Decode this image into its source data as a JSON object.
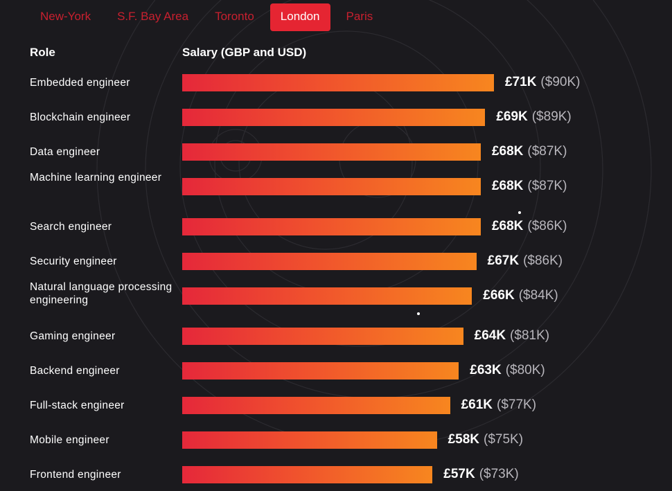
{
  "tabs": [
    {
      "label": "New-York",
      "active": false
    },
    {
      "label": "S.F. Bay Area",
      "active": false
    },
    {
      "label": "Toronto",
      "active": false
    },
    {
      "label": "London",
      "active": true
    },
    {
      "label": "Paris",
      "active": false
    }
  ],
  "headers": {
    "role": "Role",
    "salary": "Salary (GBP and USD)"
  },
  "colors": {
    "background": "#1b1a1e",
    "accent": "#e52532",
    "bar_start": "#e5283a",
    "bar_end": "#f7861f",
    "usd_text": "#b9b7bd"
  },
  "chart_data": {
    "type": "bar",
    "orientation": "horizontal",
    "categories": [
      "Embedded engineer",
      "Blockchain engineer",
      "Data engineer",
      "Machine learning engineer",
      "Search engineer",
      "Security engineer",
      "Natural language processing engineering",
      "Gaming engineer",
      "Backend engineer",
      "Full-stack engineer",
      "Mobile engineer",
      "Frontend engineer"
    ],
    "values": [
      71,
      69,
      68,
      68,
      68,
      67,
      66,
      64,
      63,
      61,
      58,
      57
    ],
    "gbp_labels": [
      "£71K",
      "£69K",
      "£68K",
      "£68K",
      "£68K",
      "£67K",
      "£66K",
      "£64K",
      "£63K",
      "£61K",
      "£58K",
      "£57K"
    ],
    "usd_labels": [
      "($90K)",
      "($89K)",
      "($87K)",
      "($87K)",
      "($86K)",
      "($86K)",
      "($84K)",
      "($81K)",
      "($80K)",
      "($77K)",
      "($75K)",
      "($73K)"
    ],
    "xlabel": "Salary (GBP and USD)",
    "ylabel": "Role",
    "grid": false,
    "legend": "none"
  }
}
